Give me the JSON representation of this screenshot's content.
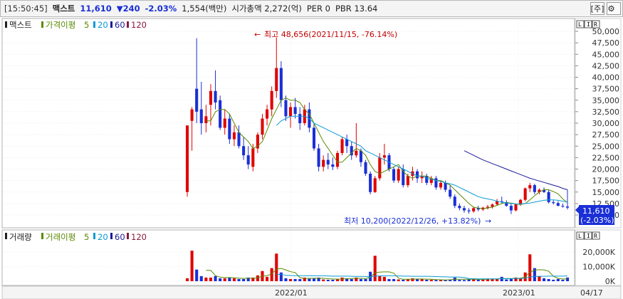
{
  "header": {
    "time": "[15:50:45]",
    "name": "맥스트",
    "price": "11,610",
    "change": "▼240",
    "change_pct": "-2.03%",
    "volume": "1,554(백만)",
    "market_cap": "시가총액 2,272(억)",
    "per": "PER 0",
    "pbr": "PBR 13.64",
    "btn_stock": "[주]",
    "btn_settings_icon": "gear-icon"
  },
  "price_panel": {
    "legend_title": "맥스트",
    "legend_ma_label": "가격이평",
    "legend_ma": [
      "5",
      "20",
      "60",
      "120"
    ],
    "panel_btns": [
      "L",
      "I",
      "R"
    ],
    "y_ticks": [
      "50,000",
      "47,500",
      "45,000",
      "42,500",
      "40,000",
      "37,500",
      "35,000",
      "32,500",
      "30,000",
      "27,500",
      "25,000",
      "22,500",
      "20,000",
      "17,500",
      "15,000",
      "12,500",
      "10,000"
    ],
    "current_price": "11,610",
    "current_pct": "(-2.03%)",
    "high_annotation": "최고 48,656(2021/11/15, -76.14%)",
    "low_annotation": "최저 10,200(2022/12/26, +13.82%)"
  },
  "volume_panel": {
    "legend_title": "거래량",
    "legend_ma_label": "거래이평",
    "legend_ma": [
      "5",
      "20",
      "60",
      "120"
    ],
    "panel_btns": [
      "L",
      "I",
      "R"
    ],
    "y_ticks": [
      "20,000K",
      "10,000K",
      "0K"
    ]
  },
  "x_axis": {
    "labels": [
      "2022/01",
      "2023/01"
    ],
    "last_date": "04/17"
  },
  "colors": {
    "up": "#e00000",
    "down": "#1a2fd6",
    "ma5": "#5a8a00",
    "ma20": "#0a9bd6",
    "ma60": "#1a1a9a",
    "ma120": "#8a1a3a"
  },
  "chart_data": [
    {
      "type": "candlestick",
      "title": "맥스트",
      "ylim": [
        10000,
        50000
      ],
      "x_labels": [
        "2022/01",
        "2023/01"
      ],
      "series": [
        {
          "name": "가격이평 5",
          "color": "#5a8a00"
        },
        {
          "name": "20",
          "color": "#0a9bd6"
        },
        {
          "name": "60",
          "color": "#1a1a9a"
        },
        {
          "name": "120",
          "color": "#8a1a3a"
        }
      ],
      "candles": [
        [
          15000,
          29500,
          14000,
          29500
        ],
        [
          30500,
          33500,
          24000,
          33000
        ],
        [
          37500,
          48500,
          30000,
          32500
        ],
        [
          33000,
          39000,
          27500,
          30000
        ],
        [
          30000,
          34000,
          28000,
          31500
        ],
        [
          34000,
          38500,
          29500,
          37000
        ],
        [
          37000,
          41500,
          33000,
          34500
        ],
        [
          35000,
          36000,
          28500,
          29000
        ],
        [
          29000,
          33000,
          27500,
          31000
        ],
        [
          31000,
          32000,
          25500,
          26500
        ],
        [
          26500,
          29500,
          25000,
          28000
        ],
        [
          28000,
          29500,
          24500,
          25000
        ],
        [
          25000,
          27000,
          22000,
          23000
        ],
        [
          23000,
          25000,
          20000,
          21000
        ],
        [
          20500,
          25500,
          19500,
          24500
        ],
        [
          24500,
          28000,
          23500,
          27500
        ],
        [
          27500,
          32000,
          26500,
          31000
        ],
        [
          31000,
          34000,
          29500,
          33000
        ],
        [
          33000,
          38000,
          31500,
          37000
        ],
        [
          37000,
          48656,
          35500,
          42000
        ],
        [
          42000,
          43500,
          33500,
          35000
        ],
        [
          35000,
          36000,
          30500,
          31500
        ],
        [
          31500,
          34500,
          29000,
          33500
        ],
        [
          33500,
          35500,
          31000,
          32000
        ],
        [
          32000,
          33500,
          28500,
          30000
        ],
        [
          30000,
          34000,
          29500,
          33000
        ],
        [
          33000,
          34500,
          28000,
          29000
        ],
        [
          29000,
          30000,
          24000,
          24500
        ],
        [
          24500,
          25500,
          19500,
          20500
        ],
        [
          20500,
          23000,
          19500,
          22000
        ],
        [
          22000,
          23500,
          20000,
          21000
        ],
        [
          21000,
          22500,
          19800,
          20500
        ],
        [
          20500,
          24000,
          20000,
          23500
        ],
        [
          23500,
          27000,
          23000,
          26500
        ],
        [
          26500,
          27500,
          23500,
          25000
        ],
        [
          25000,
          26000,
          22000,
          23000
        ],
        [
          23000,
          30000,
          22500,
          24000
        ],
        [
          24000,
          24500,
          20500,
          21500
        ],
        [
          21500,
          22000,
          18500,
          19000
        ],
        [
          19000,
          19500,
          14500,
          15000
        ],
        [
          15000,
          18500,
          14800,
          18000
        ],
        [
          18000,
          23500,
          17500,
          22500
        ],
        [
          22500,
          25500,
          21000,
          23000
        ],
        [
          23000,
          23500,
          19500,
          20000
        ],
        [
          20000,
          20500,
          17000,
          17500
        ],
        [
          17500,
          20500,
          17000,
          20000
        ],
        [
          20000,
          21000,
          16000,
          16500
        ],
        [
          16500,
          19000,
          16000,
          18500
        ],
        [
          18500,
          20500,
          17500,
          19500
        ],
        [
          19500,
          20000,
          17000,
          18000
        ],
        [
          18000,
          19500,
          17000,
          18500
        ],
        [
          18500,
          19000,
          16500,
          17000
        ],
        [
          17000,
          18500,
          16500,
          18000
        ],
        [
          18000,
          18500,
          15500,
          16000
        ],
        [
          16000,
          17500,
          15500,
          17000
        ],
        [
          17000,
          17500,
          15000,
          15500
        ],
        [
          15500,
          16500,
          13500,
          14000
        ],
        [
          14000,
          14500,
          11500,
          12000
        ],
        [
          12000,
          12500,
          11000,
          11500
        ],
        [
          11500,
          12000,
          10500,
          11000
        ],
        [
          11000,
          11500,
          10300,
          10800
        ],
        [
          10800,
          11800,
          10500,
          11500
        ],
        [
          11500,
          12000,
          10800,
          11200
        ],
        [
          11200,
          11800,
          10900,
          11600
        ],
        [
          11600,
          12200,
          11200,
          11800
        ],
        [
          11800,
          12500,
          11400,
          12300
        ],
        [
          12300,
          13500,
          12000,
          13000
        ],
        [
          13000,
          14000,
          12500,
          12800
        ],
        [
          12800,
          13200,
          11800,
          12000
        ],
        [
          12000,
          12400,
          10200,
          11000
        ],
        [
          11000,
          12500,
          10800,
          12300
        ],
        [
          12300,
          13500,
          12000,
          13300
        ],
        [
          13300,
          16000,
          13000,
          15800
        ],
        [
          15800,
          17000,
          15000,
          16500
        ],
        [
          16500,
          16800,
          14500,
          15000
        ],
        [
          15000,
          15800,
          14500,
          15500
        ],
        [
          15500,
          16000,
          14800,
          15000
        ],
        [
          15000,
          15500,
          12500,
          12800
        ],
        [
          12800,
          13200,
          12300,
          12600
        ],
        [
          12600,
          13000,
          11900,
          12000
        ],
        [
          12000,
          12500,
          11600,
          11850
        ],
        [
          11850,
          15500,
          11200,
          11610
        ]
      ],
      "ma5": [
        null,
        null,
        null,
        null,
        30500,
        30500,
        32500,
        33000,
        33000,
        32000,
        30000,
        28000,
        27000,
        26000,
        24500,
        25000,
        26000,
        28500,
        31000,
        33000,
        35000,
        35500,
        35000,
        35000,
        34500,
        33000,
        32000,
        30000,
        28000,
        26000,
        24500,
        23000,
        21500,
        21500,
        22500,
        23500,
        24500,
        24000,
        23000,
        21000,
        19500,
        19000,
        19500,
        20000,
        20500,
        21000,
        19500,
        18500,
        18000,
        18500,
        18500,
        18500,
        18000,
        17500,
        17500,
        17000,
        16500,
        15500,
        14500,
        13500,
        12500,
        11700,
        11500,
        11400,
        11500,
        11700,
        12100,
        12500,
        12700,
        12600,
        12400,
        12300,
        12500,
        13300,
        14200,
        15000,
        15500,
        15500,
        15100,
        14600,
        13500,
        12700
      ],
      "ma20": [
        null,
        null,
        null,
        null,
        null,
        null,
        null,
        null,
        null,
        null,
        null,
        null,
        null,
        null,
        null,
        null,
        null,
        null,
        null,
        29500,
        30500,
        31000,
        31500,
        31500,
        31500,
        31500,
        31000,
        30000,
        29500,
        29000,
        28500,
        28000,
        27500,
        27000,
        26500,
        26000,
        25500,
        25000,
        24000,
        23500,
        23000,
        22500,
        22000,
        21500,
        21000,
        20500,
        20000,
        19500,
        19000,
        18500,
        18500,
        18000,
        17800,
        17500,
        17300,
        17000,
        16800,
        16500,
        16000,
        15500,
        15000,
        14500,
        14000,
        13700,
        13500,
        13300,
        13000,
        12800,
        12600,
        12500,
        12400,
        12400,
        12500,
        12600,
        12800,
        13000,
        13200,
        13300,
        13300,
        13200,
        13000,
        12800
      ],
      "ma60": [
        null,
        null,
        null,
        null,
        null,
        null,
        null,
        null,
        null,
        null,
        null,
        null,
        null,
        null,
        null,
        null,
        null,
        null,
        null,
        null,
        null,
        null,
        null,
        null,
        null,
        null,
        null,
        null,
        null,
        null,
        null,
        null,
        null,
        null,
        null,
        null,
        null,
        null,
        null,
        null,
        null,
        null,
        null,
        null,
        null,
        null,
        null,
        null,
        null,
        null,
        null,
        null,
        null,
        null,
        null,
        null,
        null,
        null,
        null,
        24000,
        23500,
        23000,
        22500,
        22000,
        21600,
        21200,
        20800,
        20400,
        20000,
        19600,
        19200,
        18800,
        18400,
        18000,
        17700,
        17400,
        17100,
        16800,
        16500,
        16200,
        15800,
        15500
      ]
    },
    {
      "type": "bar",
      "title": "거래량",
      "ylim": [
        0,
        24000
      ],
      "unit": "K",
      "values": [
        2000,
        21000,
        8000,
        3500,
        2500,
        2500,
        3500,
        2000,
        2000,
        2500,
        2000,
        1500,
        1500,
        2500,
        2500,
        4000,
        7000,
        3000,
        9000,
        19000,
        6000,
        2000,
        1500,
        1500,
        1500,
        2500,
        2000,
        2000,
        2500,
        1200,
        1000,
        1000,
        1500,
        2500,
        2000,
        1500,
        2500,
        1500,
        1500,
        6500,
        17500,
        3500,
        3000,
        1500,
        1500,
        1200,
        1000,
        1500,
        2000,
        1500,
        1500,
        1000,
        1000,
        900,
        900,
        900,
        1200,
        2500,
        900,
        800,
        1300,
        1400,
        1200,
        1400,
        1800,
        1500,
        1500,
        3000,
        1200,
        2000,
        2500,
        1800,
        6000,
        18500,
        9000,
        3500,
        2000,
        1500,
        1000,
        1500,
        1000,
        2500
      ],
      "ma5": [
        null,
        null,
        null,
        null,
        7500,
        7500,
        3800,
        2800,
        2500,
        2500,
        2400,
        2100,
        1900,
        2000,
        2000,
        2400,
        3500,
        3800,
        5100,
        8300,
        8800,
        7800,
        6500,
        6000,
        2500,
        1800,
        1900,
        2000,
        2100,
        2000,
        1700,
        1500,
        1400,
        1500,
        1700,
        1800,
        2000,
        2000,
        1800,
        2700,
        5900,
        6200,
        6400,
        6400,
        5500,
        2100,
        1300,
        1300,
        1400,
        1500,
        1500,
        1400,
        1300,
        1100,
        1000,
        900,
        1000,
        1300,
        1300,
        1300,
        1300,
        1400,
        1200,
        1200,
        1400,
        1500,
        1500,
        1900,
        1800,
        1800,
        2000,
        2100,
        2900,
        6200,
        7600,
        7900,
        7800,
        6900,
        3400,
        1900,
        1500,
        1500
      ],
      "ma20": [
        null,
        null,
        null,
        null,
        null,
        null,
        null,
        null,
        null,
        null,
        null,
        null,
        null,
        null,
        null,
        null,
        null,
        null,
        null,
        4600,
        4800,
        4000,
        3900,
        3800,
        3800,
        3800,
        3700,
        3700,
        3700,
        3700,
        3600,
        3500,
        3500,
        3500,
        3500,
        3400,
        3300,
        3300,
        3300,
        2900,
        3500,
        3600,
        3700,
        3700,
        3700,
        3600,
        3500,
        3500,
        3400,
        3400,
        3400,
        3400,
        3300,
        3200,
        3100,
        3000,
        2900,
        2900,
        2800,
        2500,
        1800,
        1700,
        1600,
        1600,
        1600,
        1600,
        1600,
        1700,
        1700,
        1700,
        1800,
        1800,
        2100,
        2900,
        3300,
        3400,
        3400,
        3500,
        3500,
        3500,
        3500,
        3600
      ]
    }
  ]
}
